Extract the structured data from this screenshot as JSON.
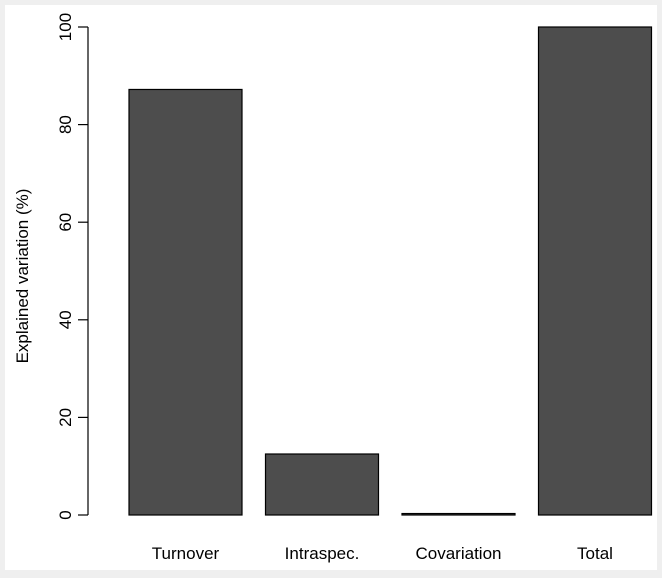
{
  "chart_data": {
    "type": "bar",
    "categories": [
      "Turnover",
      "Intraspec.",
      "Covariation",
      "Total"
    ],
    "values": [
      87.2,
      12.5,
      0.3,
      100
    ],
    "title": "",
    "xlabel": "",
    "ylabel": "Explained variation (%)",
    "ylim": [
      0,
      100
    ],
    "yticks": [
      0,
      20,
      40,
      60,
      80,
      100
    ],
    "grid": false,
    "bar_color": "#4d4d4d",
    "bar_edge_color": "#000000"
  }
}
